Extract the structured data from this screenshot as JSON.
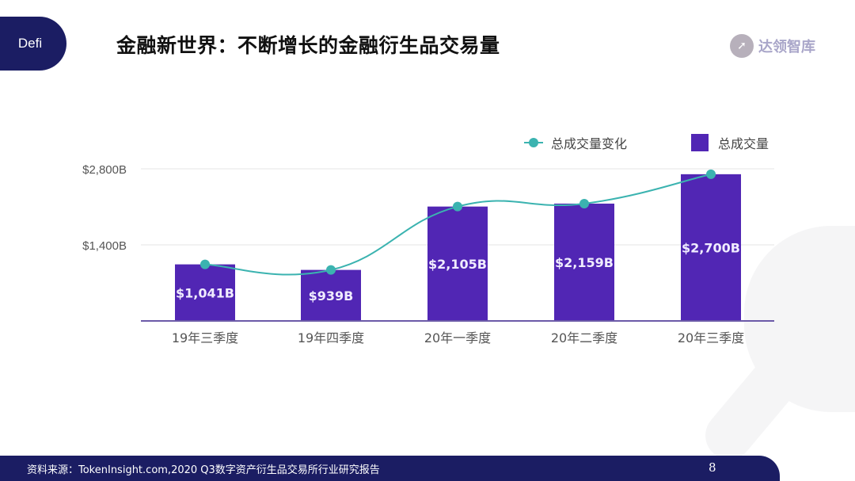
{
  "header": {
    "section_tag": "Defi",
    "title": "金融新世界：不断增长的金融衍生品交易量",
    "logo_text": "达领智库"
  },
  "chart_data": {
    "type": "bar",
    "title": "",
    "categories": [
      "19年三季度",
      "19年四季度",
      "20年一季度",
      "20年二季度",
      "20年三季度"
    ],
    "series": [
      {
        "name": "总成交量",
        "type": "bar",
        "color": "#5126b4",
        "values": [
          1041,
          939,
          2105,
          2159,
          2700
        ],
        "labels": [
          "$1,041B",
          "$939B",
          "$2,105B",
          "$2,159B",
          "$2,700B"
        ]
      },
      {
        "name": "总成交量变化",
        "type": "line",
        "color": "#3bb3b0",
        "values": [
          1041,
          939,
          2105,
          2159,
          2700
        ]
      }
    ],
    "yticks": [
      "$1,400B",
      "$2,800B"
    ],
    "ytick_values": [
      1400,
      2800
    ],
    "ylim": [
      0,
      2800
    ],
    "xlabel": "",
    "ylabel": "",
    "grid": true,
    "legend_position": "top-right",
    "unit": "Billion USD"
  },
  "legend": {
    "line_label": "总成交量变化",
    "bar_label": "总成交量"
  },
  "colors": {
    "bar": "#5126b4",
    "line": "#3bb3b0",
    "navy": "#1b1d63"
  },
  "footer": {
    "source": "资料来源：TokenInsight.com,2020 Q3数字资产衍生品交易所行业研究报告",
    "page_number": "8"
  }
}
